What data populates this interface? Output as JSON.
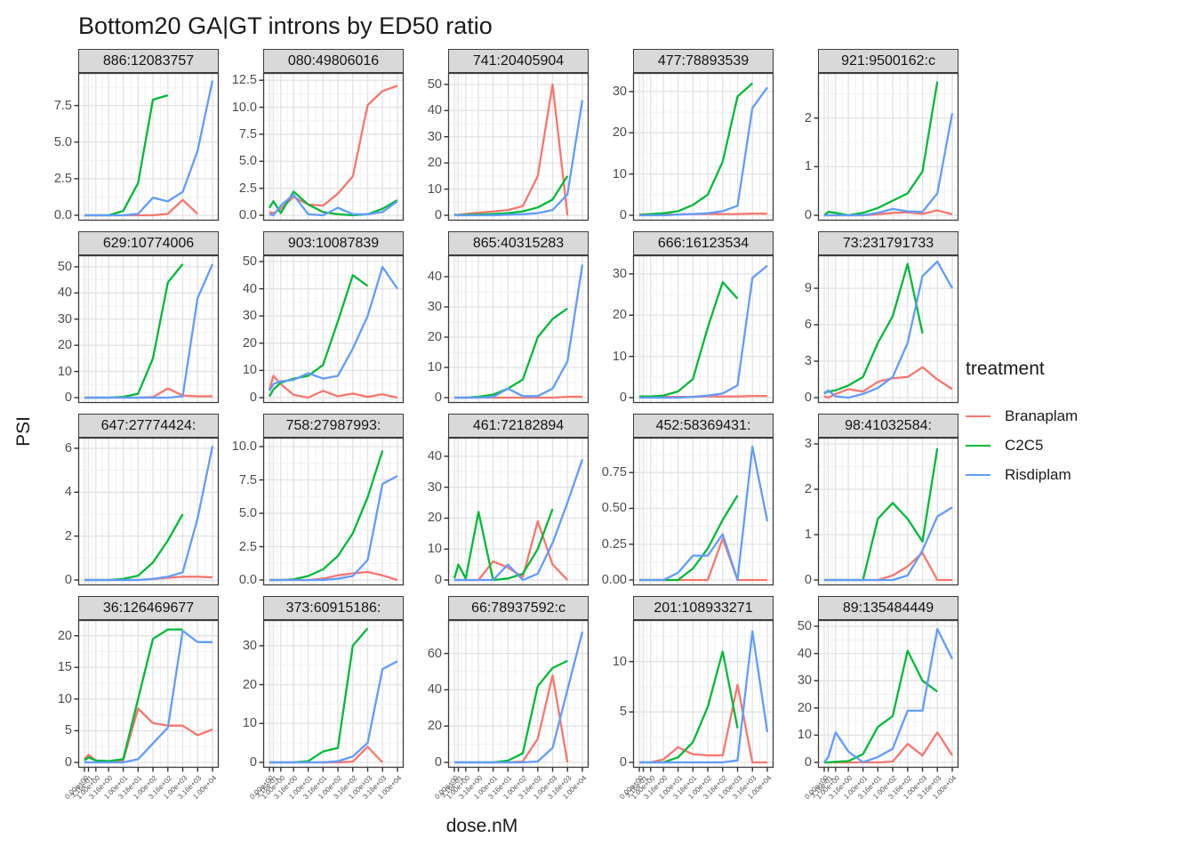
{
  "title": "Bottom20 GA|GT introns by ED50 ratio",
  "x_axis": {
    "label": "dose.nM",
    "tick_labels": [
      "0.00e+00",
      "3.16e-01",
      "1.00e+00",
      "3.16e+00",
      "1.00e+01",
      "3.16e+01",
      "1.00e+02",
      "3.16e+02",
      "1.00e+03",
      "3.16e+03",
      "1.00e+04"
    ]
  },
  "y_axis": {
    "label": "PSI"
  },
  "legend": {
    "title": "treatment",
    "entries": [
      {
        "label": "Branaplam",
        "color": "#F8766D"
      },
      {
        "label": "C2C5",
        "color": "#00BA38"
      },
      {
        "label": "Risdiplam",
        "color": "#619CFF"
      }
    ]
  },
  "chart_data": {
    "type": "line",
    "x_scale": "pseudo-log",
    "x_doses": [
      0,
      0.316,
      1,
      3.16,
      10,
      31.6,
      100,
      316,
      1000,
      3160,
      10000
    ],
    "series_names": [
      "Branaplam",
      "C2C5",
      "Risdiplam"
    ],
    "facets": [
      {
        "label": "886:12083757",
        "ymax": 9.3,
        "yticks": [
          0,
          2.5,
          5,
          7.5
        ],
        "ytick_labels": [
          "0.0",
          "2.5",
          "5.0",
          "7.5"
        ],
        "series": {
          "Branaplam": [
            0,
            0,
            0,
            0,
            0,
            0,
            0,
            0.1,
            1.05,
            0.1,
            null
          ],
          "C2C5": [
            0,
            0,
            0,
            0,
            0.3,
            2.2,
            7.9,
            8.2,
            null,
            null,
            null
          ],
          "Risdiplam": [
            0,
            0,
            0,
            0,
            0,
            0.1,
            1.2,
            0.95,
            1.6,
            4.4,
            9.2
          ]
        }
      },
      {
        "label": "080:49806016",
        "ymax": 12.6,
        "yticks": [
          0,
          2.5,
          5,
          7.5,
          10,
          12.5
        ],
        "ytick_labels": [
          "0.0",
          "2.5",
          "5.0",
          "7.5",
          "10.0",
          "12.5"
        ],
        "series": {
          "Branaplam": [
            0.3,
            0.2,
            0.6,
            1.7,
            1.0,
            0.9,
            2.0,
            3.6,
            10.2,
            11.5,
            12.0
          ],
          "C2C5": [
            0.7,
            1.3,
            0.2,
            2.2,
            1.0,
            0.3,
            0.1,
            0,
            0.1,
            0.6,
            1.4
          ],
          "Risdiplam": [
            0.1,
            0,
            0.9,
            1.9,
            0.1,
            0,
            0.7,
            0.1,
            0.1,
            0.3,
            1.3
          ]
        }
      },
      {
        "label": "741:20405904",
        "ymax": 52,
        "yticks": [
          0,
          10,
          20,
          30,
          40,
          50
        ],
        "ytick_labels": [
          "0",
          "10",
          "20",
          "30",
          "40",
          "50"
        ],
        "series": {
          "Branaplam": [
            0,
            0.2,
            0.5,
            1,
            1.5,
            2,
            3.5,
            15,
            50,
            0,
            null
          ],
          "C2C5": [
            0.3,
            0,
            0.2,
            0.3,
            0.5,
            0.8,
            1.5,
            3,
            6,
            15,
            null
          ],
          "Risdiplam": [
            0,
            0,
            0,
            0,
            0,
            0.2,
            0.4,
            0.8,
            2,
            8,
            44
          ]
        }
      },
      {
        "label": "477:78893539",
        "ymax": 33,
        "yticks": [
          0,
          10,
          20,
          30
        ],
        "ytick_labels": [
          "0",
          "10",
          "20",
          "30"
        ],
        "series": {
          "Branaplam": [
            0.2,
            0.2,
            0.2,
            0.2,
            0.2,
            0.3,
            0.3,
            0.3,
            0.3,
            0.4,
            0.4
          ],
          "C2C5": [
            0,
            0.2,
            0.3,
            0.5,
            1,
            2.5,
            5,
            13,
            28.8,
            32,
            null
          ],
          "Risdiplam": [
            0,
            0,
            0,
            0,
            0.2,
            0.3,
            0.5,
            1,
            2.3,
            26,
            31
          ]
        }
      },
      {
        "label": "921:9500162:c",
        "ymax": 2.8,
        "yticks": [
          0,
          1,
          2
        ],
        "ytick_labels": [
          "0",
          "1",
          "2"
        ],
        "series": {
          "Branaplam": [
            0,
            0,
            0,
            0,
            0,
            0.02,
            0.05,
            0.06,
            0.03,
            0.1,
            0.02
          ],
          "C2C5": [
            0,
            0.07,
            0.05,
            0,
            0.05,
            0.15,
            0.3,
            0.45,
            0.9,
            2.75,
            null
          ],
          "Risdiplam": [
            0,
            0,
            0,
            0,
            0,
            0.05,
            0.13,
            0.08,
            0.07,
            0.45,
            2.1
          ]
        }
      },
      {
        "label": "629:10774006",
        "ymax": 52,
        "yticks": [
          0,
          10,
          20,
          30,
          40,
          50
        ],
        "ytick_labels": [
          "0",
          "10",
          "20",
          "30",
          "40",
          "50"
        ],
        "series": {
          "Branaplam": [
            0,
            0,
            0,
            0,
            0,
            0,
            0.2,
            3.5,
            0.8,
            0.5,
            0.5
          ],
          "C2C5": [
            0,
            0,
            0,
            0,
            0.3,
            1.5,
            15,
            44,
            51,
            null,
            null
          ],
          "Risdiplam": [
            0,
            0,
            0,
            0,
            0,
            0,
            0,
            0,
            0.5,
            38,
            51
          ]
        }
      },
      {
        "label": "903:10087839",
        "ymax": 50,
        "yticks": [
          0,
          10,
          20,
          30,
          40,
          50
        ],
        "ytick_labels": [
          "0",
          "10",
          "20",
          "30",
          "40",
          "50"
        ],
        "series": {
          "Branaplam": [
            3,
            8,
            5,
            1,
            0,
            2.5,
            0.5,
            1.5,
            0.3,
            1.2,
            0
          ],
          "C2C5": [
            0.5,
            3,
            5.5,
            7,
            8,
            12,
            28,
            45,
            41,
            null,
            null
          ],
          "Risdiplam": [
            2.5,
            5,
            6,
            6.5,
            9,
            7,
            8,
            18,
            30,
            48,
            40
          ]
        }
      },
      {
        "label": "865:40315283",
        "ymax": 45,
        "yticks": [
          0,
          10,
          20,
          30,
          40
        ],
        "ytick_labels": [
          "0",
          "10",
          "20",
          "30",
          "40"
        ],
        "series": {
          "Branaplam": [
            0,
            0,
            0,
            0,
            0,
            0,
            0,
            0,
            0,
            0.3,
            0.3
          ],
          "C2C5": [
            0,
            0,
            0,
            0.3,
            1,
            3,
            6,
            20,
            26,
            29.5,
            null
          ],
          "Risdiplam": [
            0,
            0,
            0,
            0,
            0.2,
            3,
            0.5,
            0.5,
            3,
            12,
            44
          ]
        }
      },
      {
        "label": "666:16123534",
        "ymax": 33,
        "yticks": [
          0,
          10,
          20,
          30
        ],
        "ytick_labels": [
          "0",
          "10",
          "20",
          "30"
        ],
        "series": {
          "Branaplam": [
            0.2,
            0.2,
            0.2,
            0.2,
            0.2,
            0.2,
            0.3,
            0.3,
            0.3,
            0.4,
            0.4
          ],
          "C2C5": [
            0.3,
            0.3,
            0.3,
            0.5,
            1.5,
            4.5,
            17,
            28,
            24,
            null,
            null
          ],
          "Risdiplam": [
            0,
            0,
            0,
            0,
            0,
            0.2,
            0.5,
            1,
            3,
            29,
            32
          ]
        }
      },
      {
        "label": "73:231791733",
        "ymax": 11.2,
        "yticks": [
          0,
          3,
          6,
          9
        ],
        "ytick_labels": [
          "0",
          "3",
          "6",
          "9"
        ],
        "series": {
          "Branaplam": [
            0.1,
            0,
            0.3,
            0.7,
            0.5,
            1.3,
            1.6,
            1.7,
            2.5,
            1.5,
            0.7
          ],
          "C2C5": [
            0.4,
            0.5,
            0.6,
            1,
            1.7,
            4.5,
            6.7,
            11,
            5.3,
            null,
            null
          ],
          "Risdiplam": [
            0.3,
            0.6,
            0.1,
            0,
            0.3,
            0.8,
            1.7,
            4.5,
            10,
            11.2,
            9
          ]
        }
      },
      {
        "label": "647:27774424:",
        "ymax": 6.2,
        "yticks": [
          0,
          2,
          4,
          6
        ],
        "ytick_labels": [
          "0",
          "2",
          "4",
          "6"
        ],
        "series": {
          "Branaplam": [
            0,
            0,
            0,
            0,
            0,
            0,
            0.05,
            0.1,
            0.15,
            0.15,
            0.12
          ],
          "C2C5": [
            0,
            0,
            0,
            0,
            0.05,
            0.2,
            0.8,
            1.8,
            3.0,
            null,
            null
          ],
          "Risdiplam": [
            0,
            0,
            0,
            0,
            0,
            0,
            0.05,
            0.15,
            0.35,
            2.8,
            6.1
          ]
        }
      },
      {
        "label": "758:27987993:",
        "ymax": 10.2,
        "yticks": [
          0,
          2.5,
          5,
          7.5,
          10
        ],
        "ytick_labels": [
          "0.0",
          "2.5",
          "5.0",
          "7.5",
          "10.0"
        ],
        "series": {
          "Branaplam": [
            0,
            0,
            0,
            0,
            0,
            0.1,
            0.35,
            0.5,
            0.6,
            0.35,
            0
          ],
          "C2C5": [
            0,
            0,
            0,
            0.05,
            0.3,
            0.8,
            1.8,
            3.5,
            6.2,
            9.7,
            null
          ],
          "Risdiplam": [
            0,
            0,
            0,
            0,
            0,
            0,
            0.1,
            0.3,
            1.5,
            7.2,
            7.8
          ]
        }
      },
      {
        "label": "461:72182894",
        "ymax": 44,
        "yticks": [
          0,
          10,
          20,
          30,
          40
        ],
        "ytick_labels": [
          "0",
          "10",
          "20",
          "30",
          "40"
        ],
        "series": {
          "Branaplam": [
            0,
            0,
            0,
            0,
            6,
            4,
            1,
            19,
            5,
            0,
            null
          ],
          "C2C5": [
            0.5,
            5,
            0.5,
            22,
            0,
            0.5,
            2,
            10,
            23,
            null,
            null
          ],
          "Risdiplam": [
            0,
            0,
            0,
            0,
            0,
            5,
            0,
            2,
            12,
            25,
            39
          ]
        }
      },
      {
        "label": "452:58369431:",
        "ymax": 0.95,
        "yticks": [
          0,
          0.25,
          0.5,
          0.75
        ],
        "ytick_labels": [
          "0.00",
          "0.25",
          "0.50",
          "0.75"
        ],
        "series": {
          "Branaplam": [
            0,
            0,
            0,
            0,
            0,
            0,
            0,
            0.29,
            0,
            0,
            0
          ],
          "C2C5": [
            0,
            0,
            0,
            0,
            0,
            0.08,
            0.22,
            0.42,
            0.59,
            null,
            null
          ],
          "Risdiplam": [
            0,
            0,
            0,
            0,
            0.05,
            0.17,
            0.17,
            0.32,
            0,
            0.93,
            0.41
          ]
        }
      },
      {
        "label": "98:41032584:",
        "ymax": 3.0,
        "yticks": [
          0,
          1,
          2,
          3
        ],
        "ytick_labels": [
          "0",
          "1",
          "2",
          "3"
        ],
        "series": {
          "Branaplam": [
            0,
            0,
            0,
            0,
            0,
            0,
            0.1,
            0.3,
            0.6,
            0,
            0
          ],
          "C2C5": [
            0,
            0,
            0,
            0,
            0,
            1.35,
            1.7,
            1.35,
            0.85,
            2.9,
            null
          ],
          "Risdiplam": [
            0,
            0,
            0,
            0,
            0,
            0,
            0,
            0.1,
            0.65,
            1.4,
            1.6
          ]
        }
      },
      {
        "label": "36:126469677",
        "ymax": 21.5,
        "yticks": [
          0,
          5,
          10,
          15,
          20
        ],
        "ytick_labels": [
          "0",
          "5",
          "10",
          "15",
          "20"
        ],
        "series": {
          "Branaplam": [
            0.5,
            1.2,
            0.3,
            0.2,
            0.3,
            8.5,
            6.2,
            5.8,
            5.8,
            4.3,
            5.2
          ],
          "C2C5": [
            0.3,
            0.8,
            0.3,
            0.2,
            0.5,
            10,
            19.5,
            21,
            21,
            null,
            null
          ],
          "Risdiplam": [
            0,
            0,
            0,
            0,
            0,
            0.5,
            3,
            5.5,
            20.8,
            19,
            19
          ]
        }
      },
      {
        "label": "373:60915186:",
        "ymax": 35,
        "yticks": [
          0,
          10,
          20,
          30
        ],
        "ytick_labels": [
          "0",
          "10",
          "20",
          "30"
        ],
        "series": {
          "Branaplam": [
            0,
            0,
            0,
            0,
            0,
            0,
            0,
            0.2,
            4,
            0,
            null
          ],
          "C2C5": [
            0,
            0,
            0,
            0,
            0.3,
            2.8,
            3.7,
            30,
            34.5,
            null,
            null
          ],
          "Risdiplam": [
            0,
            0,
            0,
            0,
            0,
            0,
            0.3,
            1.5,
            5,
            24,
            26
          ]
        }
      },
      {
        "label": "66:78937592:c",
        "ymax": 75,
        "yticks": [
          0,
          20,
          40,
          60
        ],
        "ytick_labels": [
          "0",
          "20",
          "40",
          "60"
        ],
        "series": {
          "Branaplam": [
            0,
            0,
            0,
            0,
            0,
            0,
            0.5,
            13,
            48,
            0,
            null
          ],
          "C2C5": [
            0,
            0,
            0,
            0,
            0,
            1,
            5,
            42,
            52,
            56,
            null
          ],
          "Risdiplam": [
            0,
            0,
            0,
            0,
            0,
            0,
            0,
            0.5,
            8,
            40,
            72
          ]
        }
      },
      {
        "label": "201:108933271",
        "ymax": 13.5,
        "yticks": [
          0,
          5,
          10
        ],
        "ytick_labels": [
          "0",
          "5",
          "10"
        ],
        "series": {
          "Branaplam": [
            0,
            0,
            0,
            0.3,
            1.5,
            0.8,
            0.7,
            0.7,
            7.7,
            0,
            0
          ],
          "C2C5": [
            0,
            0,
            0,
            0,
            0.5,
            2,
            5.5,
            11,
            3.4,
            null,
            null
          ],
          "Risdiplam": [
            0,
            0,
            0,
            0,
            0,
            0,
            0,
            0,
            0.2,
            13,
            3
          ]
        }
      },
      {
        "label": "89:135484449",
        "ymax": 50,
        "yticks": [
          0,
          10,
          20,
          30,
          40,
          50
        ],
        "ytick_labels": [
          "0",
          "10",
          "20",
          "30",
          "40",
          "50"
        ],
        "series": {
          "Branaplam": [
            0,
            0,
            0,
            0,
            0,
            0,
            0.3,
            6.8,
            2.5,
            11,
            2.5
          ],
          "C2C5": [
            0,
            0,
            0.2,
            0.5,
            3,
            13,
            17,
            41,
            30,
            26,
            null
          ],
          "Risdiplam": [
            0,
            2,
            11,
            4,
            0,
            2,
            5,
            19,
            19,
            49,
            38
          ]
        }
      }
    ]
  }
}
